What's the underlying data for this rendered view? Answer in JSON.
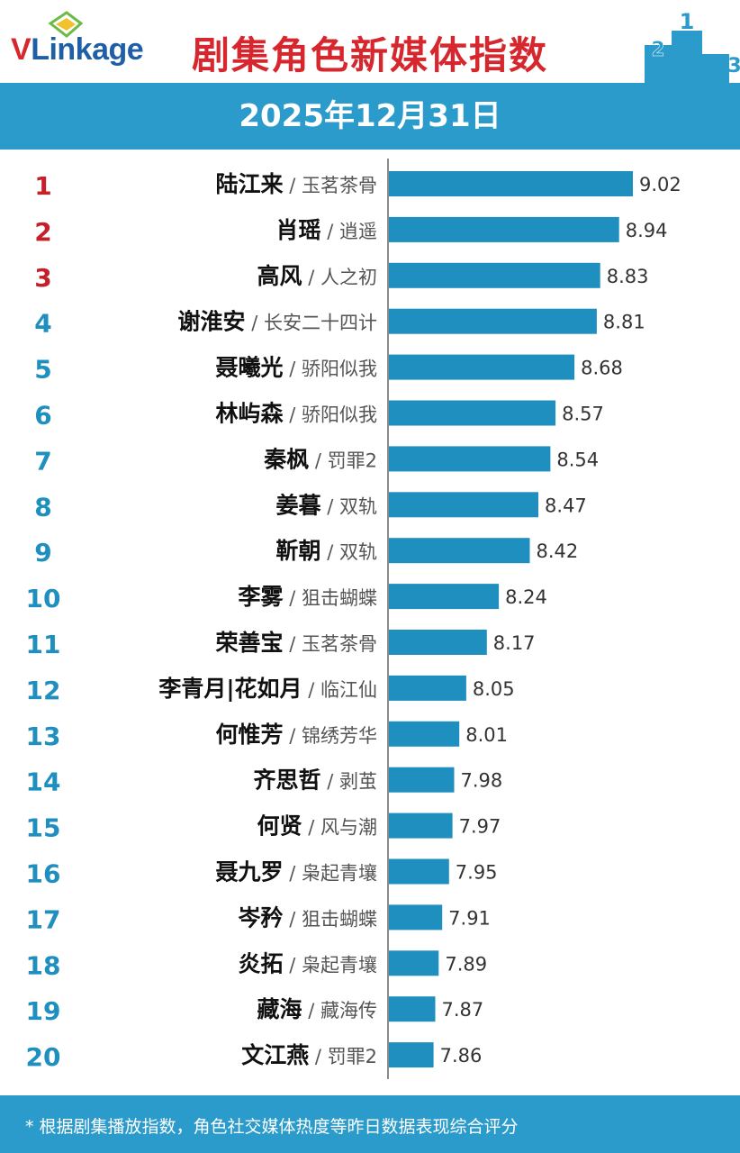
{
  "header": {
    "logo_v": "V",
    "logo_rest": "Linkage",
    "title": "剧集角色新媒体指数",
    "podium": [
      "2",
      "1",
      "3"
    ]
  },
  "date": "2025年12月31日",
  "footer": {
    "note": "* 根据剧集播放指数，角色社交媒体热度等昨日数据表现综合评分"
  },
  "colors": {
    "accent": "#2b9bcc",
    "title_red": "#d7272e",
    "rank_top": "#c5202a",
    "rank_rest": "#1e8fbf",
    "bar": "#1e8fbf"
  },
  "chart_data": {
    "type": "bar",
    "orientation": "horizontal",
    "title": "剧集角色新媒体指数",
    "xlim": [
      7.6,
      9.1
    ],
    "grid": false,
    "ranks": [
      "1",
      "2",
      "3",
      "4",
      "5",
      "6",
      "7",
      "8",
      "9",
      "10",
      "11",
      "12",
      "13",
      "14",
      "15",
      "16",
      "17",
      "18",
      "19",
      "20"
    ],
    "characters": [
      "陆江来",
      "肖瑶",
      "高风",
      "谢淮安",
      "聂曦光",
      "林屿森",
      "秦枫",
      "姜暮",
      "靳朝",
      "李雾",
      "荣善宝",
      "李青月|花如月",
      "何惟芳",
      "齐思哲",
      "何贤",
      "聂九罗",
      "岑矜",
      "炎拓",
      "藏海",
      "文江燕"
    ],
    "dramas": [
      "玉茗茶骨",
      "逍遥",
      "人之初",
      "长安二十四计",
      "骄阳似我",
      "骄阳似我",
      "罚罪2",
      "双轨",
      "双轨",
      "狙击蝴蝶",
      "玉茗茶骨",
      "临江仙",
      "锦绣芳华",
      "剥茧",
      "风与潮",
      "枭起青壤",
      "狙击蝴蝶",
      "枭起青壤",
      "藏海传",
      "罚罪2"
    ],
    "values": [
      9.02,
      8.94,
      8.83,
      8.81,
      8.68,
      8.57,
      8.54,
      8.47,
      8.42,
      8.24,
      8.17,
      8.05,
      8.01,
      7.98,
      7.97,
      7.95,
      7.91,
      7.89,
      7.87,
      7.86
    ],
    "value_labels": [
      "9.02",
      "8.94",
      "8.83",
      "8.81",
      "8.68",
      "8.57",
      "8.54",
      "8.47",
      "8.42",
      "8.24",
      "8.17",
      "8.05",
      "8.01",
      "7.98",
      "7.97",
      "7.95",
      "7.91",
      "7.89",
      "7.87",
      "7.86"
    ]
  }
}
